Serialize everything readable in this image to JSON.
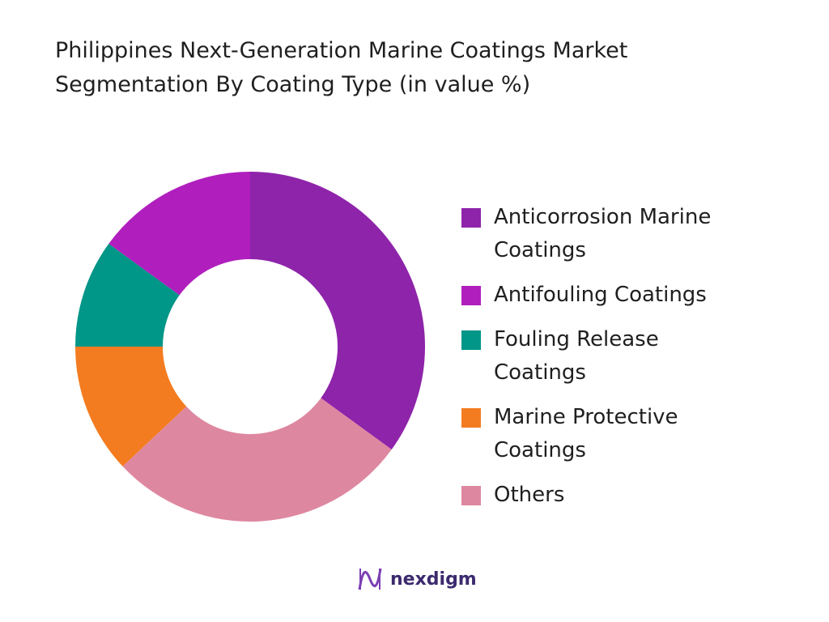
{
  "chart_data": {
    "type": "donut",
    "title": "Philippines Next-Generation Marine Coatings Market Segmentation By Coating Type (in value %)",
    "categories": [
      "Anticorrosion Marine Coatings",
      "Antifouling Coatings",
      "Fouling Release Coatings",
      "Marine Protective Coatings",
      "Others"
    ],
    "values": [
      35,
      15,
      10,
      12,
      28
    ],
    "colors": [
      "#8e24aa",
      "#b01fbd",
      "#009688",
      "#f47c20",
      "#de87a0"
    ]
  },
  "brand": "nexdigm"
}
